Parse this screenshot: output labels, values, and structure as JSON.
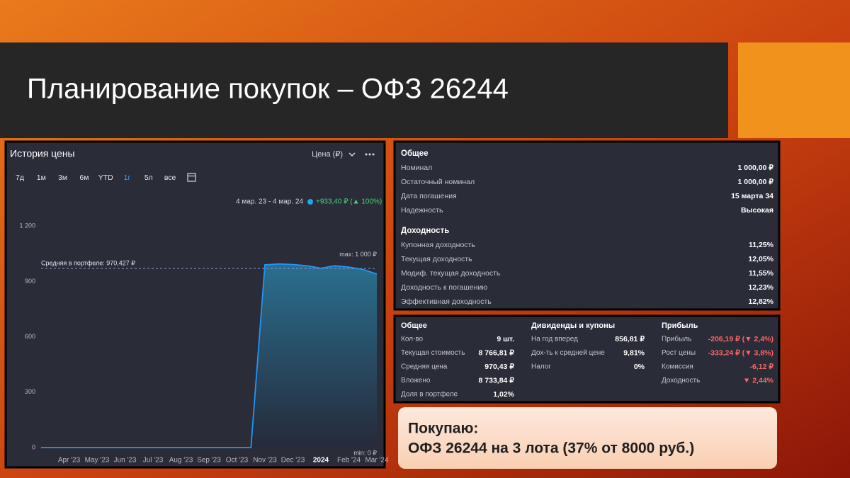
{
  "slide": {
    "title": "Планирование покупок – ОФЗ 26244"
  },
  "chart_data": {
    "type": "line",
    "title": "История цены",
    "selector": "Цена (₽)",
    "periods": [
      "7д",
      "1м",
      "3м",
      "6м",
      "YTD",
      "1г",
      "5л",
      "все"
    ],
    "range_label": "4 мар. 23 - 4 мар. 24",
    "change": "+933,40 ₽ (▲ 100%)",
    "average": 970.427,
    "average_label": "Средняя в портфеле: 970,427 ₽",
    "max_label": "max: 1 000 ₽",
    "min_label": "min: 0 ₽",
    "categories": [
      null,
      null,
      "Apr '23",
      null,
      "May '23",
      null,
      "Jun '23",
      null,
      "Jul '23",
      null,
      "Aug '23",
      null,
      "Sep '23",
      null,
      "Oct '23",
      null,
      "Nov '23",
      null,
      "Dec '23",
      null,
      "2024",
      null,
      "Feb '24",
      null,
      "Mar '24"
    ],
    "values": [
      0,
      0,
      0,
      0,
      0,
      0,
      0,
      0,
      0,
      0,
      0,
      0,
      0,
      0,
      0,
      0,
      990,
      995,
      992,
      985,
      972,
      985,
      978,
      965,
      940
    ],
    "color": "#2196f3",
    "ylim": [
      0,
      1270
    ],
    "yticks": [
      0,
      300,
      600,
      900,
      {
        "value": 1200,
        "label": "1 200"
      }
    ]
  },
  "info": {
    "sections": [
      {
        "title": "Общее",
        "rows": [
          [
            "Номинал",
            "1 000,00 ₽"
          ],
          [
            "Остаточный номинал",
            "1 000,00 ₽"
          ],
          [
            "Дата погашения",
            "15 марта 34"
          ],
          [
            "Надежность",
            "Высокая"
          ]
        ]
      },
      {
        "title": "Доходность",
        "rows": [
          [
            "Купонная доходность",
            "11,25%"
          ],
          [
            "Текущая доходность",
            "12,05%"
          ],
          [
            "Модиф. текущая доходность",
            "11,55%"
          ],
          [
            "Доходность к погашению",
            "12,23%"
          ],
          [
            "Эффективная доходность",
            "12,82%"
          ]
        ]
      }
    ]
  },
  "portfolio": {
    "columns": [
      {
        "title": "Общее",
        "rows": [
          [
            "Кол-во",
            "9 шт."
          ],
          [
            "Текущая стоимость",
            "8 766,81 ₽"
          ],
          [
            "Средняя цена",
            "970,43 ₽"
          ],
          [
            "Вложено",
            "8 733,84 ₽"
          ],
          [
            "Доля в портфеле",
            "1,02%"
          ]
        ]
      },
      {
        "title": "Дивиденды и купоны",
        "rows": [
          [
            "На год вперед",
            "856,81 ₽"
          ],
          [
            "Дох-ть к средней цене",
            "9,81%"
          ],
          [
            "Налог",
            "0%"
          ]
        ]
      },
      {
        "title": "Прибыль",
        "color": "#ff6464",
        "rows": [
          [
            "Прибыль",
            "-206,19 ₽ (▼ 2,4%)"
          ],
          [
            "Рост цены",
            "-333,24 ₽ (▼ 3,8%)"
          ],
          [
            "Комиссия",
            "-6,12 ₽"
          ],
          [
            "Доходность",
            "▼ 2,44%"
          ]
        ]
      }
    ]
  },
  "callout": {
    "lines": [
      "Покупаю:",
      "ОФЗ 26244 на 3 лота (37% от 8000 руб.)"
    ]
  }
}
